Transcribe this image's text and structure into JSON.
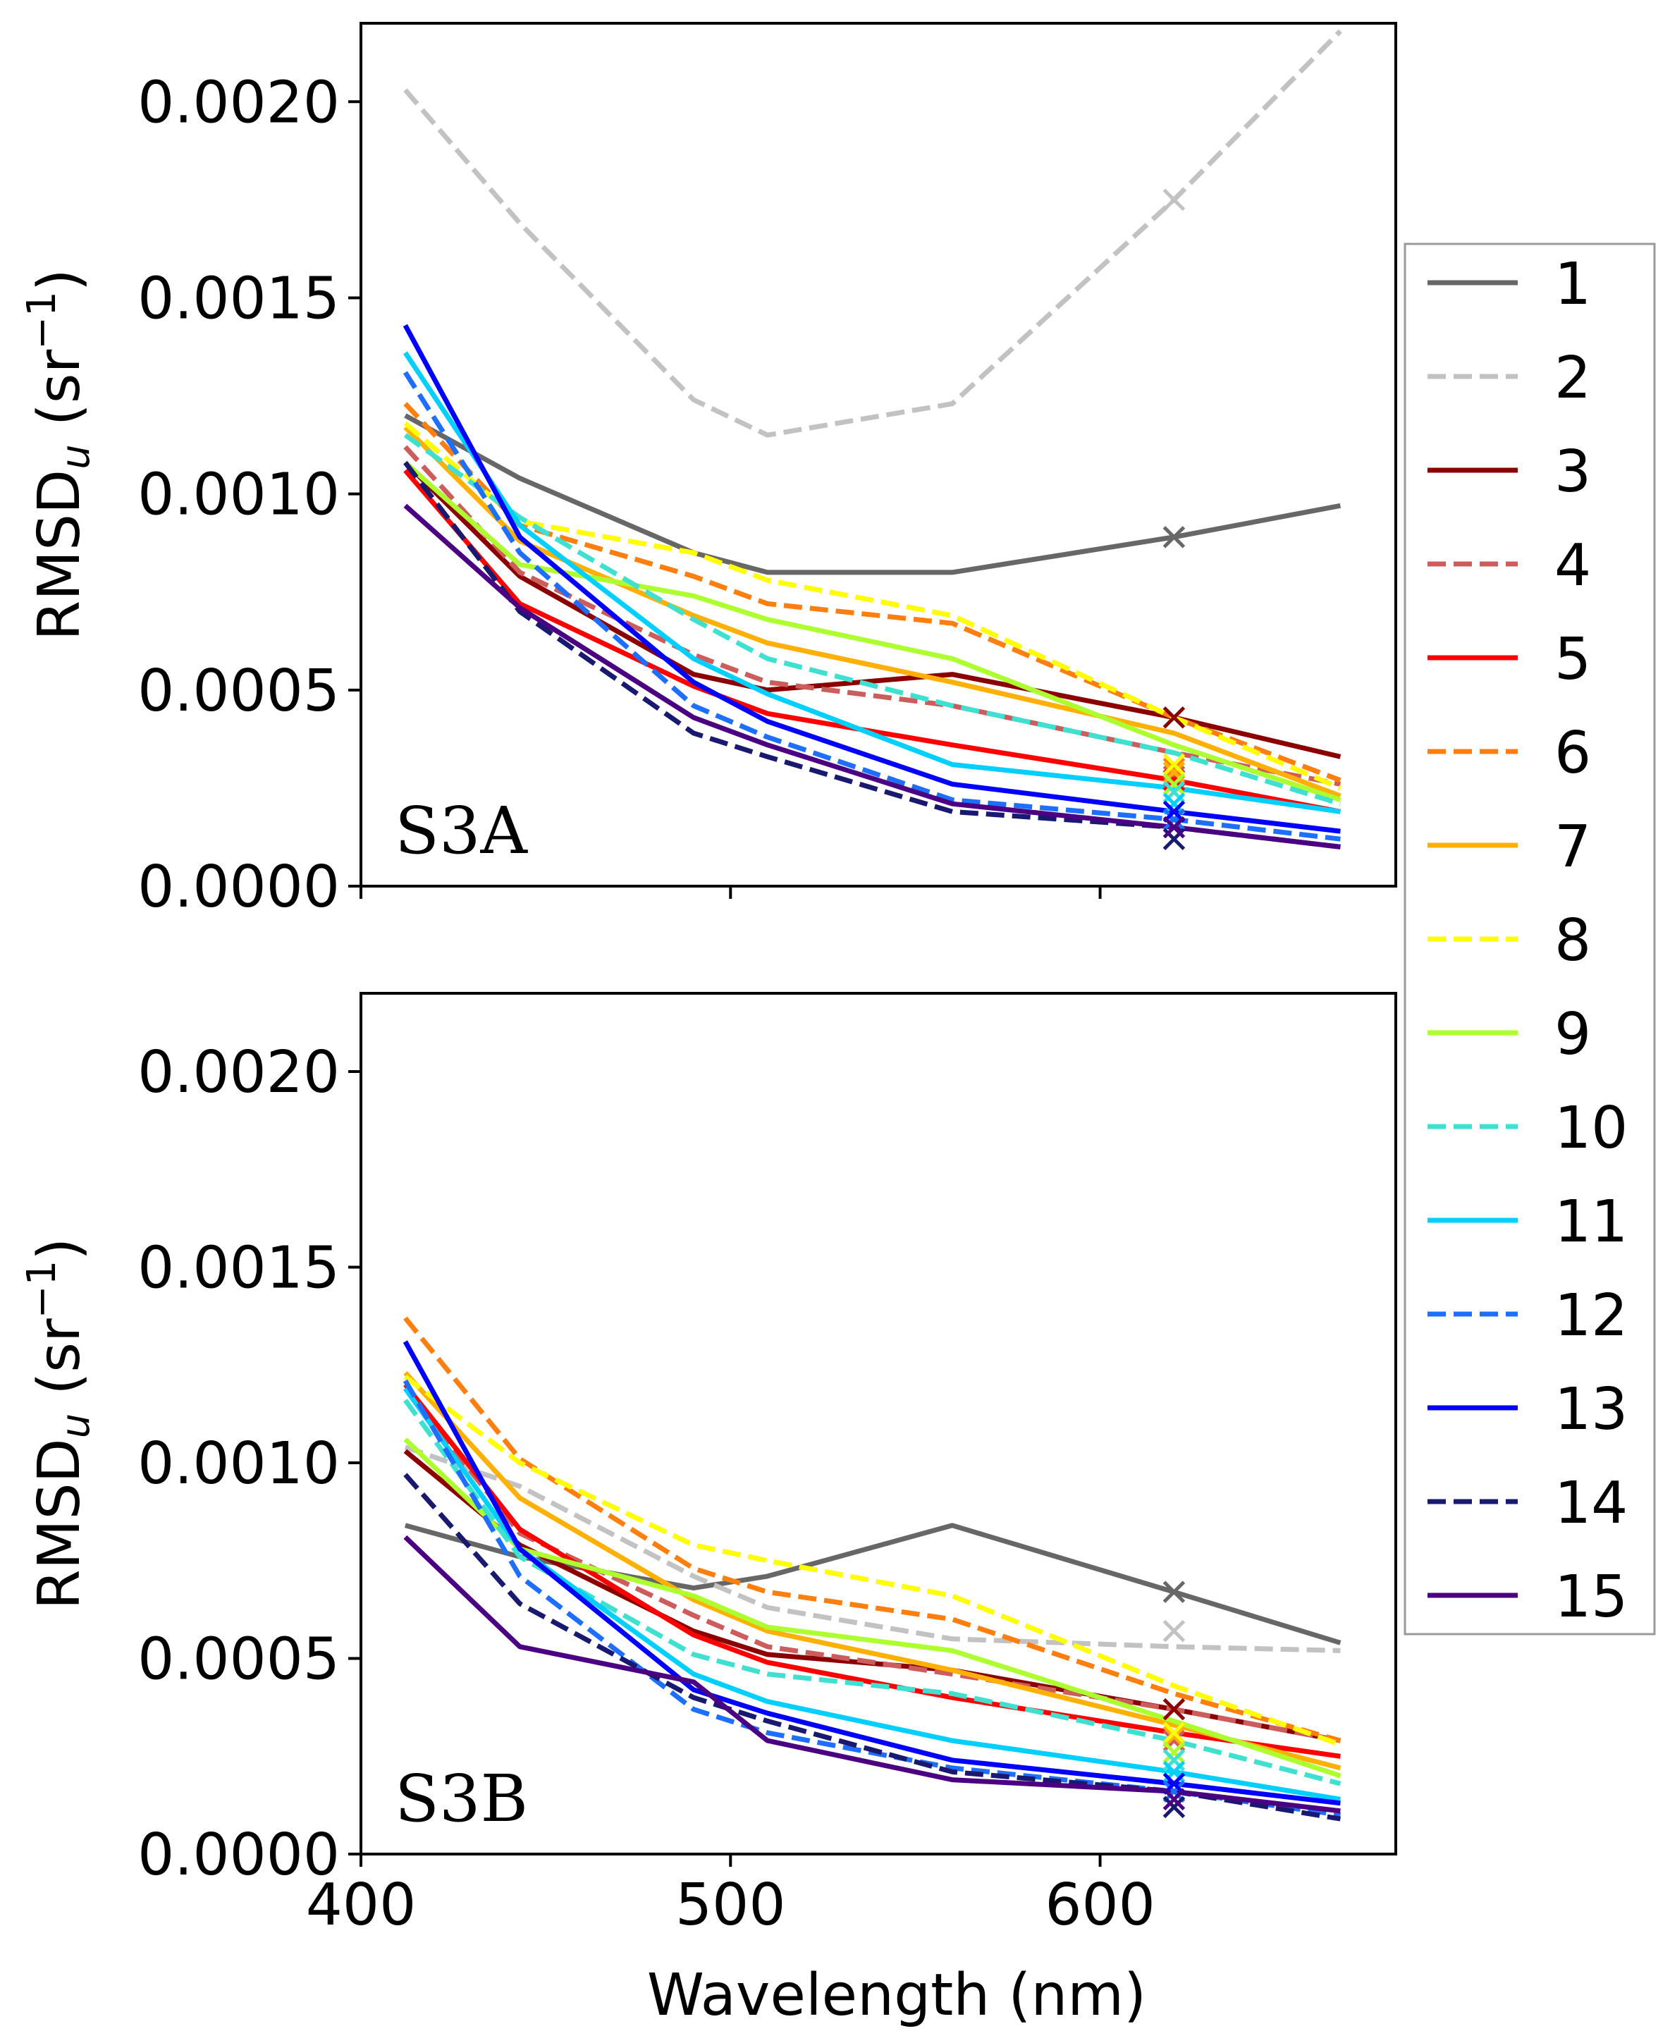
{
  "chart_data": [
    {
      "type": "line",
      "panel_label": "S3A",
      "xlabel": "",
      "ylabel": "RMSD",
      "ylabel_sub": "u",
      "yunit_prefix": "(sr",
      "yunit_exp": "−1",
      "yunit_suffix": ")",
      "xlim": [
        400,
        680
      ],
      "ylim": [
        0,
        0.0022
      ],
      "x": [
        412,
        443,
        490,
        510,
        560,
        620,
        665
      ],
      "xticks": [
        400,
        500,
        600
      ],
      "yticks": [
        "0.0000",
        "0.0005",
        "0.0010",
        "0.0015",
        "0.0020"
      ],
      "ytick_values": [
        0,
        0.0005,
        0.001,
        0.0015,
        0.002
      ],
      "x_marker": 620,
      "series": [
        {
          "name": "1",
          "values": [
            0.0012,
            0.00104,
            0.00085,
            0.0008,
            0.0008,
            0.00089,
            0.00097
          ],
          "marker": 0.00089
        },
        {
          "name": "2",
          "values": [
            0.00203,
            0.00169,
            0.00124,
            0.00115,
            0.00123,
            0.00175,
            0.00218
          ],
          "marker": 0.00175
        },
        {
          "name": "3",
          "values": [
            0.00108,
            0.00079,
            0.00054,
            0.0005,
            0.00054,
            0.00043,
            0.00033
          ],
          "marker": 0.00043
        },
        {
          "name": "4",
          "values": [
            0.00112,
            0.0008,
            0.00059,
            0.00052,
            0.00046,
            0.00034,
            0.00026
          ],
          "marker": 0.00028
        },
        {
          "name": "5",
          "values": [
            0.00106,
            0.00072,
            0.00051,
            0.00044,
            0.00036,
            0.00027,
            0.00019
          ],
          "marker": 0.00027
        },
        {
          "name": "6",
          "values": [
            0.00123,
            0.00092,
            0.00079,
            0.00072,
            0.00067,
            0.00043,
            0.00027
          ],
          "marker": 0.0003
        },
        {
          "name": "7",
          "values": [
            0.00117,
            0.00088,
            0.00069,
            0.00062,
            0.00052,
            0.00039,
            0.00023
          ],
          "marker": 0.00029
        },
        {
          "name": "8",
          "values": [
            0.00118,
            0.00093,
            0.00085,
            0.00078,
            0.00069,
            0.00043,
            0.00025
          ],
          "marker": 0.00031
        },
        {
          "name": "9",
          "values": [
            0.00108,
            0.00082,
            0.00074,
            0.00068,
            0.00058,
            0.00036,
            0.00022
          ],
          "marker": 0.00026
        },
        {
          "name": "10",
          "values": [
            0.00115,
            0.00094,
            0.00068,
            0.00058,
            0.00046,
            0.00034,
            0.00021
          ],
          "marker": 0.00024
        },
        {
          "name": "11",
          "values": [
            0.00136,
            0.00092,
            0.00058,
            0.00049,
            0.00031,
            0.00025,
            0.00019
          ],
          "marker": 0.00021
        },
        {
          "name": "12",
          "values": [
            0.00131,
            0.00085,
            0.00046,
            0.00038,
            0.00022,
            0.00017,
            0.00012
          ],
          "marker": 0.00017
        },
        {
          "name": "13",
          "values": [
            0.00143,
            0.00089,
            0.00052,
            0.00042,
            0.00026,
            0.00019,
            0.00014
          ],
          "marker": 0.00019
        },
        {
          "name": "14",
          "values": [
            0.00108,
            0.0007,
            0.00039,
            0.00033,
            0.00019,
            0.00015,
            0.0001
          ],
          "marker": 0.00012
        },
        {
          "name": "15",
          "values": [
            0.00097,
            0.00071,
            0.00043,
            0.00036,
            0.00021,
            0.00015,
            0.0001
          ],
          "marker": 0.00015
        }
      ]
    },
    {
      "type": "line",
      "panel_label": "S3B",
      "xlabel": "Wavelength (nm)",
      "ylabel": "RMSD",
      "ylabel_sub": "u",
      "yunit_prefix": "(sr",
      "yunit_exp": "−1",
      "yunit_suffix": ")",
      "xlim": [
        400,
        680
      ],
      "ylim": [
        0,
        0.0022
      ],
      "x": [
        412,
        443,
        490,
        510,
        560,
        620,
        665
      ],
      "xticks": [
        400,
        500,
        600
      ],
      "yticks": [
        "0.0000",
        "0.0005",
        "0.0010",
        "0.0015",
        "0.0020"
      ],
      "ytick_values": [
        0,
        0.0005,
        0.001,
        0.0015,
        0.002
      ],
      "x_marker": 620,
      "series": [
        {
          "name": "1",
          "values": [
            0.00084,
            0.00076,
            0.00068,
            0.00071,
            0.00084,
            0.00067,
            0.00054
          ],
          "marker": 0.00067
        },
        {
          "name": "2",
          "values": [
            0.00104,
            0.00094,
            0.00071,
            0.00063,
            0.00055,
            0.00053,
            0.00052
          ],
          "marker": 0.00057
        },
        {
          "name": "3",
          "values": [
            0.00103,
            0.00079,
            0.00057,
            0.00051,
            0.00047,
            0.00037,
            0.00029
          ],
          "marker": 0.00037
        },
        {
          "name": "4",
          "values": [
            0.00119,
            0.00082,
            0.00061,
            0.00053,
            0.00046,
            0.00037,
            0.00029
          ],
          "marker": 0.00029
        },
        {
          "name": "5",
          "values": [
            0.0012,
            0.00083,
            0.00056,
            0.00049,
            0.0004,
            0.00031,
            0.00025
          ],
          "marker": 0.00031
        },
        {
          "name": "6",
          "values": [
            0.00137,
            0.00101,
            0.00073,
            0.00067,
            0.0006,
            0.00041,
            0.00029
          ],
          "marker": 0.00031
        },
        {
          "name": "7",
          "values": [
            0.00123,
            0.00091,
            0.00065,
            0.00057,
            0.00047,
            0.00033,
            0.00022
          ],
          "marker": 0.0003
        },
        {
          "name": "8",
          "values": [
            0.00122,
            0.001,
            0.00079,
            0.00075,
            0.00066,
            0.00043,
            0.00028
          ],
          "marker": 0.00031
        },
        {
          "name": "9",
          "values": [
            0.00106,
            0.00078,
            0.00066,
            0.00058,
            0.00052,
            0.00034,
            0.0002
          ],
          "marker": 0.00026
        },
        {
          "name": "10",
          "values": [
            0.00116,
            0.00076,
            0.00051,
            0.00046,
            0.00041,
            0.00029,
            0.00018
          ],
          "marker": 0.00024
        },
        {
          "name": "11",
          "values": [
            0.00119,
            0.00078,
            0.00046,
            0.00039,
            0.00029,
            0.00021,
            0.00014
          ],
          "marker": 0.00021
        },
        {
          "name": "12",
          "values": [
            0.00121,
            0.00071,
            0.00037,
            0.00031,
            0.00022,
            0.00016,
            0.0001
          ],
          "marker": 0.00016
        },
        {
          "name": "13",
          "values": [
            0.00131,
            0.00078,
            0.00042,
            0.00036,
            0.00024,
            0.00018,
            0.00013
          ],
          "marker": 0.00018
        },
        {
          "name": "14",
          "values": [
            0.00097,
            0.00064,
            0.0004,
            0.00034,
            0.00021,
            0.00016,
            9e-05
          ],
          "marker": 0.00012
        },
        {
          "name": "15",
          "values": [
            0.00081,
            0.00053,
            0.00044,
            0.00029,
            0.00019,
            0.00016,
            0.00011
          ],
          "marker": 0.00014
        }
      ]
    }
  ],
  "legend": {
    "placement": "right",
    "items": [
      {
        "label": "1",
        "color": "#676767",
        "style": "solid"
      },
      {
        "label": "2",
        "color": "#c2c2c2",
        "style": "dashed"
      },
      {
        "label": "3",
        "color": "#8b0000",
        "style": "solid"
      },
      {
        "label": "4",
        "color": "#cd5c5c",
        "style": "dashed"
      },
      {
        "label": "5",
        "color": "#ff0000",
        "style": "solid"
      },
      {
        "label": "6",
        "color": "#ff7f0e",
        "style": "dashed"
      },
      {
        "label": "7",
        "color": "#ffb000",
        "style": "solid"
      },
      {
        "label": "8",
        "color": "#ffff00",
        "style": "dashed"
      },
      {
        "label": "9",
        "color": "#adff2f",
        "style": "solid"
      },
      {
        "label": "10",
        "color": "#40e0d0",
        "style": "dashed"
      },
      {
        "label": "11",
        "color": "#00cfff",
        "style": "solid"
      },
      {
        "label": "12",
        "color": "#1e6fff",
        "style": "dashed"
      },
      {
        "label": "13",
        "color": "#0000ff",
        "style": "solid"
      },
      {
        "label": "14",
        "color": "#191970",
        "style": "dashed"
      },
      {
        "label": "15",
        "color": "#4b0082",
        "style": "solid"
      }
    ]
  }
}
